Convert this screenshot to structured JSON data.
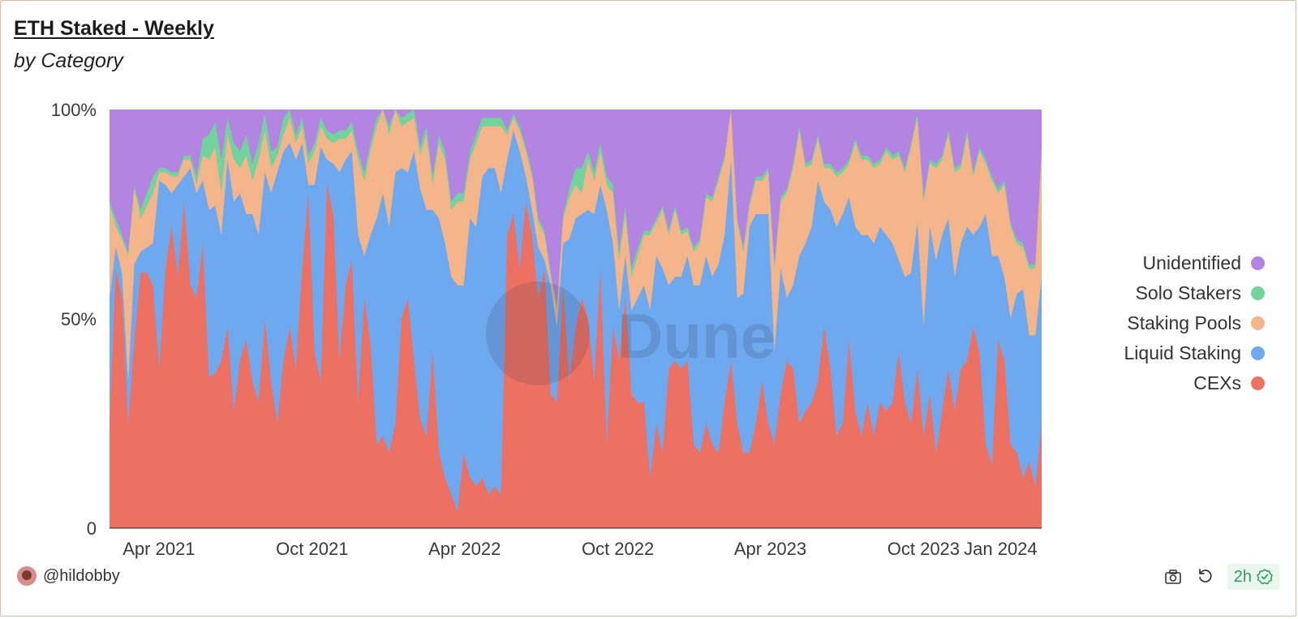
{
  "header": {
    "title": "ETH Staked - Weekly",
    "subtitle": "by Category"
  },
  "footer": {
    "user": "@hildobby",
    "refresh_age": "2h"
  },
  "watermark": {
    "text": "Dune"
  },
  "colors": {
    "cexs": "#ec7163",
    "liquid_staking": "#6ea8ef",
    "staking_pools": "#f3b589",
    "solo_stakers": "#72d39c",
    "unidentified": "#b484e2"
  },
  "chart_data": {
    "type": "area",
    "stacked": true,
    "normalized": true,
    "title": "ETH Staked - Weekly",
    "subtitle": "by Category",
    "yticks": [
      "0",
      "50%",
      "100%"
    ],
    "ylim": [
      0,
      100
    ],
    "xticks": [
      "Apr 2021",
      "Oct 2021",
      "Apr 2022",
      "Oct 2022",
      "Apr 2023",
      "Oct 2023",
      "Jan 2024"
    ],
    "xrange": [
      "2021-02-01",
      "2024-02-19"
    ],
    "legend_position": "right",
    "series": [
      {
        "name": "CEXs",
        "color": "#ec7163",
        "values": [
          25,
          62,
          55,
          25,
          45,
          61,
          61,
          58,
          38,
          62,
          72,
          60,
          78,
          58,
          55,
          68,
          36,
          37,
          40,
          48,
          28,
          40,
          45,
          35,
          30,
          50,
          35,
          25,
          40,
          48,
          38,
          62,
          80,
          42,
          35,
          82,
          75,
          40,
          58,
          64,
          30,
          55,
          44,
          20,
          22,
          18,
          25,
          50,
          55,
          40,
          26,
          22,
          42,
          18,
          12,
          8,
          4,
          18,
          12,
          10,
          12,
          8,
          10,
          8,
          70,
          75,
          62,
          78,
          70,
          55,
          62,
          32,
          30,
          58,
          35,
          48,
          55,
          50,
          35,
          62,
          20,
          48,
          40,
          55,
          32,
          30,
          30,
          12,
          25,
          18,
          38,
          40,
          38,
          40,
          20,
          18,
          25,
          20,
          18,
          30,
          40,
          25,
          18,
          18,
          25,
          35,
          25,
          20,
          32,
          40,
          38,
          25,
          28,
          30,
          35,
          48,
          38,
          22,
          25,
          45,
          28,
          22,
          30,
          22,
          30,
          28,
          30,
          42,
          30,
          25,
          38,
          22,
          32,
          18,
          28,
          38,
          28,
          38,
          40,
          48,
          42,
          20,
          15,
          45,
          40,
          20,
          18,
          12,
          16,
          10,
          25
        ]
      },
      {
        "name": "Liquid Staking",
        "color": "#6ea8ef",
        "values": [
          30,
          5,
          6,
          10,
          18,
          5,
          6,
          10,
          45,
          20,
          8,
          22,
          6,
          28,
          25,
          15,
          40,
          40,
          30,
          40,
          50,
          40,
          30,
          40,
          40,
          35,
          45,
          60,
          50,
          44,
          50,
          30,
          2,
          40,
          56,
          6,
          12,
          45,
          30,
          26,
          40,
          10,
          26,
          54,
          58,
          54,
          60,
          36,
          30,
          50,
          55,
          54,
          34,
          56,
          56,
          52,
          54,
          40,
          62,
          62,
          72,
          78,
          76,
          72,
          18,
          20,
          28,
          6,
          6,
          12,
          2,
          26,
          18,
          10,
          34,
          26,
          20,
          26,
          40,
          20,
          56,
          20,
          12,
          10,
          20,
          25,
          28,
          40,
          40,
          44,
          20,
          20,
          22,
          25,
          38,
          40,
          40,
          40,
          45,
          40,
          48,
          30,
          38,
          54,
          50,
          40,
          50,
          22,
          30,
          15,
          20,
          40,
          40,
          42,
          48,
          30,
          38,
          50,
          50,
          34,
          44,
          48,
          40,
          46,
          42,
          42,
          38,
          22,
          30,
          36,
          35,
          26,
          40,
          46,
          42,
          36,
          32,
          30,
          32,
          22,
          30,
          55,
          50,
          20,
          20,
          30,
          38,
          45,
          30,
          36,
          35
        ]
      },
      {
        "name": "Staking Pools",
        "color": "#f3b589",
        "values": [
          22,
          5,
          8,
          30,
          18,
          8,
          10,
          12,
          2,
          3,
          4,
          2,
          4,
          2,
          2,
          6,
          12,
          14,
          10,
          6,
          10,
          6,
          14,
          8,
          18,
          10,
          6,
          4,
          4,
          6,
          4,
          4,
          5,
          8,
          5,
          5,
          5,
          8,
          5,
          5,
          18,
          18,
          20,
          22,
          20,
          22,
          16,
          10,
          12,
          8,
          8,
          18,
          6,
          18,
          20,
          16,
          20,
          20,
          14,
          20,
          12,
          10,
          10,
          16,
          6,
          3,
          5,
          6,
          8,
          6,
          6,
          2,
          4,
          6,
          10,
          8,
          5,
          12,
          8,
          8,
          6,
          12,
          12,
          10,
          8,
          10,
          12,
          18,
          8,
          14,
          12,
          16,
          10,
          6,
          8,
          10,
          14,
          18,
          20,
          18,
          16,
          18,
          10,
          5,
          8,
          8,
          10,
          20,
          16,
          25,
          28,
          30,
          18,
          15,
          10,
          8,
          10,
          12,
          10,
          8,
          20,
          18,
          18,
          18,
          15,
          20,
          20,
          25,
          25,
          30,
          25,
          30,
          15,
          22,
          18,
          20,
          25,
          18,
          22,
          14,
          18,
          12,
          18,
          15,
          22,
          22,
          12,
          10,
          16,
          16,
          30
        ]
      },
      {
        "name": "Solo Stakers",
        "color": "#72d39c",
        "values": [
          1,
          2,
          1,
          1,
          1,
          2,
          3,
          4,
          1,
          1,
          1,
          1,
          1,
          1,
          2,
          4,
          6,
          6,
          8,
          4,
          4,
          4,
          5,
          4,
          4,
          4,
          4,
          2,
          4,
          2,
          2,
          2,
          2,
          2,
          2,
          2,
          2,
          2,
          2,
          2,
          2,
          2,
          2,
          2,
          2,
          2,
          2,
          2,
          2,
          2,
          2,
          2,
          2,
          2,
          2,
          2,
          2,
          2,
          2,
          2,
          2,
          2,
          2,
          2,
          1,
          1,
          1,
          1,
          1,
          1,
          1,
          1,
          1,
          1,
          2,
          4,
          6,
          2,
          2,
          2,
          2,
          2,
          2,
          2,
          2,
          2,
          1,
          1,
          1,
          1,
          1,
          1,
          1,
          1,
          1,
          1,
          1,
          1,
          1,
          1,
          1,
          1,
          1,
          1,
          1,
          1,
          1,
          1,
          1,
          1,
          1,
          1,
          1,
          1,
          1,
          1,
          1,
          1,
          1,
          1,
          1,
          1,
          1,
          1,
          1,
          1,
          1,
          1,
          1,
          1,
          1,
          1,
          1,
          1,
          1,
          1,
          1,
          1,
          1,
          1,
          1,
          1,
          1,
          1,
          1,
          1,
          1,
          1,
          1,
          1,
          1
        ]
      }
    ],
    "remainder_series": {
      "name": "Unidentified",
      "color": "#b484e2"
    },
    "legend": [
      "Unidentified",
      "Solo Stakers",
      "Staking Pools",
      "Liquid Staking",
      "CEXs"
    ]
  }
}
